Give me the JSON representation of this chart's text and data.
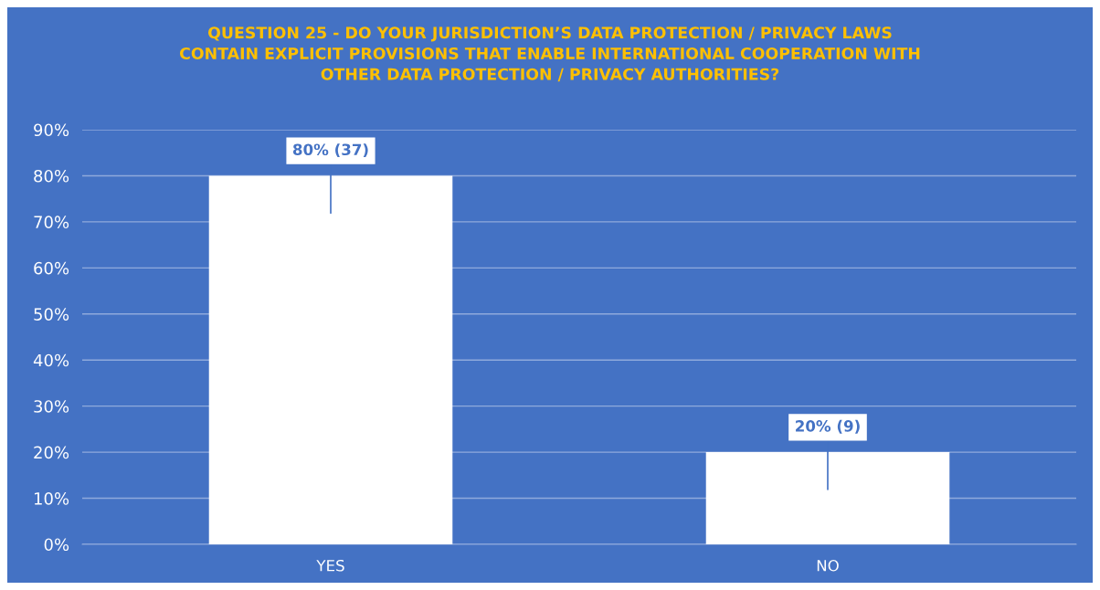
{
  "chart_data": {
    "type": "bar",
    "title": "QUESTION 25 - DO YOUR JURISDICTION’S DATA PROTECTION / PRIVACY LAWS\nCONTAIN EXPLICIT PROVISIONS THAT ENABLE INTERNATIONAL COOPERATION WITH\nOTHER DATA PROTECTION / PRIVACY AUTHORITIES?",
    "categories": [
      "YES",
      "NO"
    ],
    "values": [
      80,
      20
    ],
    "value_labels": [
      "80% (37)",
      "20% (9)"
    ],
    "color": "#ffffff",
    "ylim": [
      0,
      90
    ],
    "yticks": [
      {
        "value": 0,
        "label": "0%"
      },
      {
        "value": 10,
        "label": "10%"
      },
      {
        "value": 20,
        "label": "20%"
      },
      {
        "value": 30,
        "label": "30%"
      },
      {
        "value": 40,
        "label": "40%"
      },
      {
        "value": 50,
        "label": "50%"
      },
      {
        "value": 60,
        "label": "60%"
      },
      {
        "value": 70,
        "label": "70%"
      },
      {
        "value": 80,
        "label": "80%"
      },
      {
        "value": 90,
        "label": "90%"
      }
    ],
    "grid": "y"
  }
}
